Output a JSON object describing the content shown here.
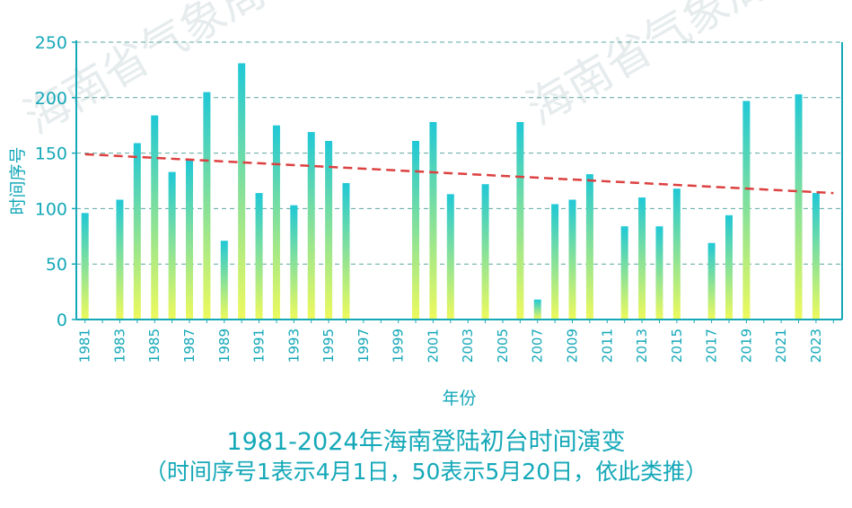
{
  "watermark": "海南省气象局",
  "chart_data": {
    "type": "bar",
    "title": "1981-2024年海南登陆初台时间演变",
    "subtitle": "（时间序号1表示4月1日，50表示5月20日，依此类推）",
    "xlabel": "年份",
    "ylabel": "时间序号",
    "ylim": [
      0,
      250
    ],
    "yticks": [
      0,
      50,
      100,
      150,
      200,
      250
    ],
    "xticks": [
      "1981",
      "1983",
      "1985",
      "1987",
      "1989",
      "1991",
      "1993",
      "1995",
      "1997",
      "1999",
      "2001",
      "2003",
      "2005",
      "2007",
      "2009",
      "2011",
      "2013",
      "2015",
      "2017",
      "2019",
      "2021",
      "2023"
    ],
    "grid": "horizontal dashed",
    "categories": [
      1981,
      1982,
      1983,
      1984,
      1985,
      1986,
      1987,
      1988,
      1989,
      1990,
      1991,
      1992,
      1993,
      1994,
      1995,
      1996,
      1997,
      1998,
      1999,
      2000,
      2001,
      2002,
      2003,
      2004,
      2005,
      2006,
      2007,
      2008,
      2009,
      2010,
      2011,
      2012,
      2013,
      2014,
      2015,
      2016,
      2017,
      2018,
      2019,
      2020,
      2021,
      2022,
      2023,
      2024
    ],
    "values": [
      96,
      null,
      108,
      159,
      184,
      133,
      144,
      205,
      71,
      231,
      114,
      175,
      103,
      169,
      161,
      123,
      null,
      null,
      null,
      161,
      178,
      113,
      null,
      122,
      null,
      178,
      18,
      104,
      108,
      131,
      null,
      84,
      110,
      84,
      118,
      null,
      69,
      94,
      197,
      null,
      null,
      203,
      114,
      null
    ],
    "trend": {
      "start": 149,
      "end": 114,
      "color": "#dd4040",
      "style": "dashed"
    },
    "colors": {
      "bar_top": "#20c8d6",
      "bar_bottom": "#eefa5c",
      "axis": "#14a8b8",
      "grid": "#5aa8a0"
    }
  }
}
